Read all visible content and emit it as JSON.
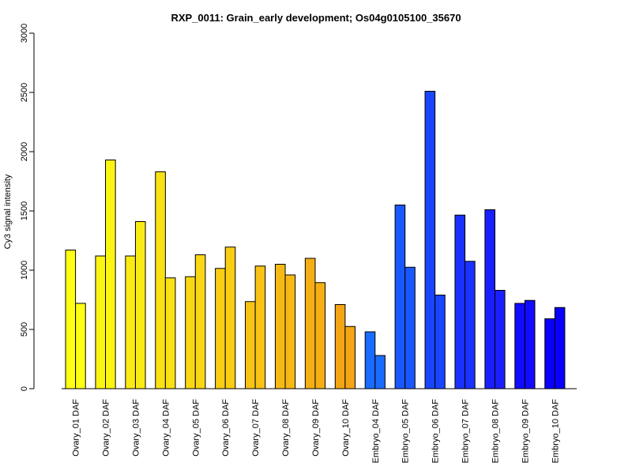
{
  "chart_data": {
    "type": "bar",
    "title": "RXP_0011: Grain_early development; Os04g0105100_35670",
    "xlabel": "",
    "ylabel": "Cy3 signal intensity",
    "ylim": [
      0,
      3000
    ],
    "yticks": [
      0,
      500,
      1000,
      1500,
      2000,
      2500,
      3000
    ],
    "grid": false,
    "legend": "none",
    "categories": [
      "Ovary_01 DAF",
      "Ovary_02 DAF",
      "Ovary_03 DAF",
      "Ovary_04 DAF",
      "Ovary_05 DAF",
      "Ovary_06 DAF",
      "Ovary_07 DAF",
      "Ovary_08 DAF",
      "Ovary_09 DAF",
      "Ovary_10 DAF",
      "Embryo_04 DAF",
      "Embryo_05 DAF",
      "Embryo_06 DAF",
      "Embryo_07 DAF",
      "Embryo_08 DAF",
      "Embryo_09 DAF",
      "Embryo_10 DAF"
    ],
    "bars_per_category": 2,
    "values": [
      [
        1170,
        720
      ],
      [
        1120,
        1930
      ],
      [
        1120,
        1410
      ],
      [
        1830,
        935
      ],
      [
        945,
        1130
      ],
      [
        1015,
        1195
      ],
      [
        735,
        1035
      ],
      [
        1050,
        960
      ],
      [
        1100,
        895
      ],
      [
        710,
        525
      ],
      [
        480,
        280
      ],
      [
        1550,
        1025
      ],
      [
        2510,
        790
      ],
      [
        1465,
        1075
      ],
      [
        1510,
        830
      ],
      [
        720,
        745
      ],
      [
        590,
        685
      ]
    ],
    "colors": [
      "#ffff14",
      "#fcf514",
      "#fbeb14",
      "#fae114",
      "#f9d714",
      "#f8cd14",
      "#f7c314",
      "#f6b914",
      "#f5af14",
      "#f4a514",
      "#1a6bff",
      "#1a58ff",
      "#1a45ff",
      "#1a32ff",
      "#1a1fff",
      "#120cff",
      "#0a00ff"
    ]
  }
}
